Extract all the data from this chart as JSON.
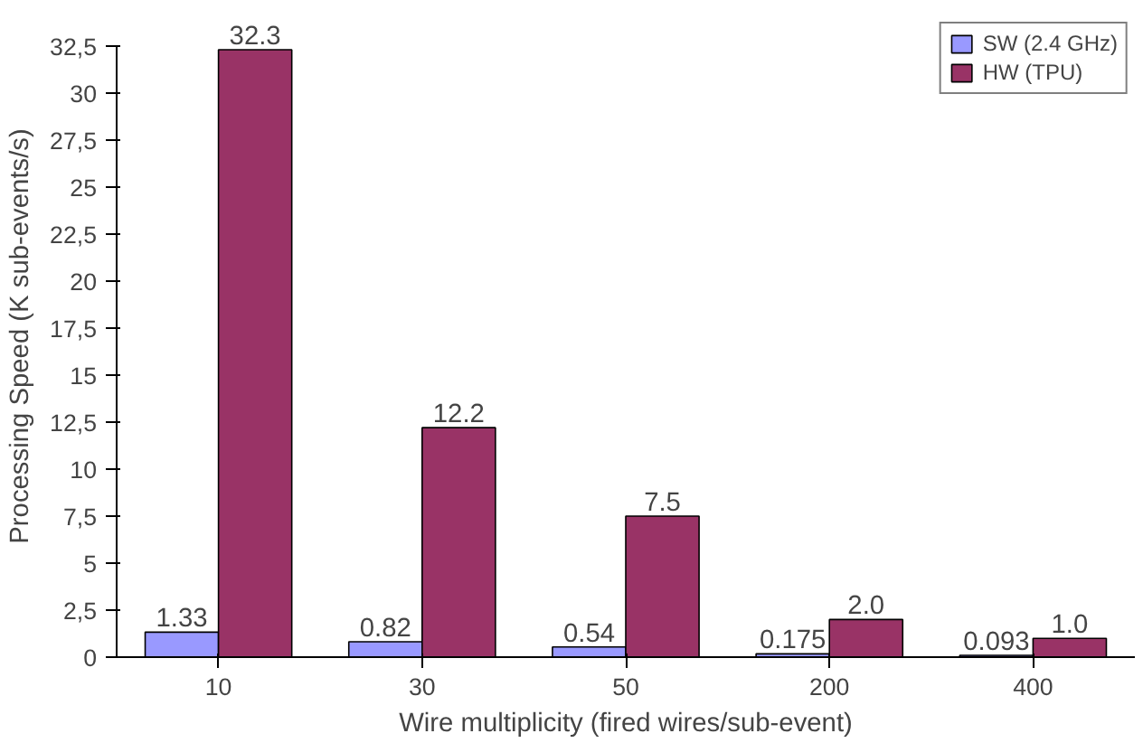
{
  "chart_data": {
    "type": "bar",
    "xlabel": "Wire multiplicity (fired wires/sub-event)",
    "ylabel": "Processing Speed (K sub-events/s)",
    "categories": [
      "10",
      "30",
      "50",
      "200",
      "400"
    ],
    "series": [
      {
        "name": "SW (2.4 GHz)",
        "color": "#9999ff",
        "values": [
          1.33,
          0.82,
          0.54,
          0.175,
          0.093
        ],
        "value_labels": [
          "1.33",
          "0.82",
          "0.54",
          "0.175",
          "0.093"
        ]
      },
      {
        "name": "HW (TPU)",
        "color": "#993366",
        "values": [
          32.3,
          12.2,
          7.5,
          2.0,
          1.0
        ],
        "value_labels": [
          "32.3",
          "12.2",
          "7.5",
          "2.0",
          "1.0"
        ]
      }
    ],
    "ylim": [
      0,
      32.5
    ],
    "yticks": [
      0,
      {
        "value": 2.5,
        "label": "2,5"
      },
      5,
      {
        "value": 7.5,
        "label": "7,5"
      },
      10,
      {
        "value": 12.5,
        "label": "12,5"
      },
      15,
      {
        "value": 17.5,
        "label": "17,5"
      },
      20,
      {
        "value": 22.5,
        "label": "22,5"
      },
      25,
      {
        "value": 27.5,
        "label": "27,5"
      },
      30,
      {
        "value": 32.5,
        "label": "32,5"
      }
    ],
    "grid": false,
    "legend": "top right"
  }
}
